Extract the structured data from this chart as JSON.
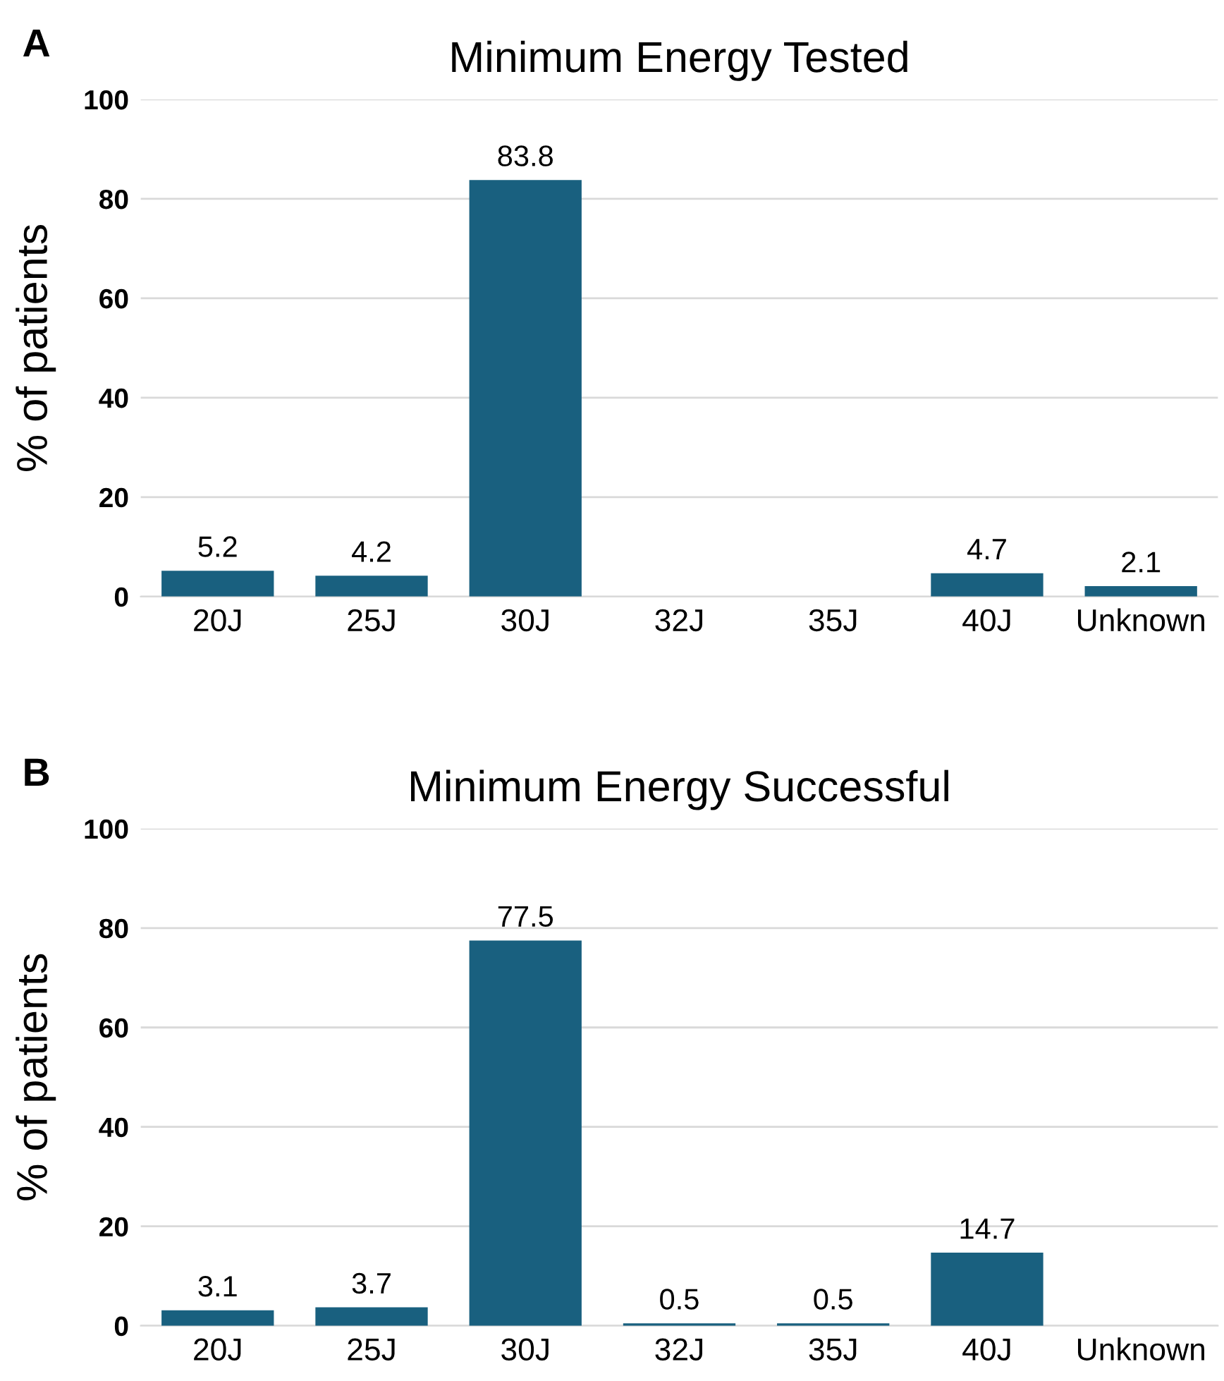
{
  "chart_data": [
    {
      "type": "bar",
      "title": "Minimum Energy Tested",
      "ylabel": "% of patients",
      "annotations": [
        "A"
      ],
      "categories": [
        "20J",
        "25J",
        "30J",
        "32J",
        "35J",
        "40J",
        "Unknown"
      ],
      "values": [
        5.2,
        4.2,
        83.8,
        null,
        null,
        4.7,
        2.1
      ],
      "color": "#19607f",
      "ylim": [
        0,
        100
      ],
      "yticks": [
        0,
        20,
        40,
        60,
        80,
        100
      ],
      "grid": "y",
      "data_labels": true
    },
    {
      "type": "bar",
      "title": "Minimum Energy Successful",
      "ylabel": "% of patients",
      "annotations": [
        "B"
      ],
      "categories": [
        "20J",
        "25J",
        "30J",
        "32J",
        "35J",
        "40J",
        "Unknown"
      ],
      "values": [
        3.1,
        3.7,
        77.5,
        0.5,
        0.5,
        14.7,
        null
      ],
      "color": "#19607f",
      "ylim": [
        0,
        100
      ],
      "yticks": [
        0,
        20,
        40,
        60,
        80,
        100
      ],
      "grid": "y",
      "data_labels": true
    }
  ]
}
